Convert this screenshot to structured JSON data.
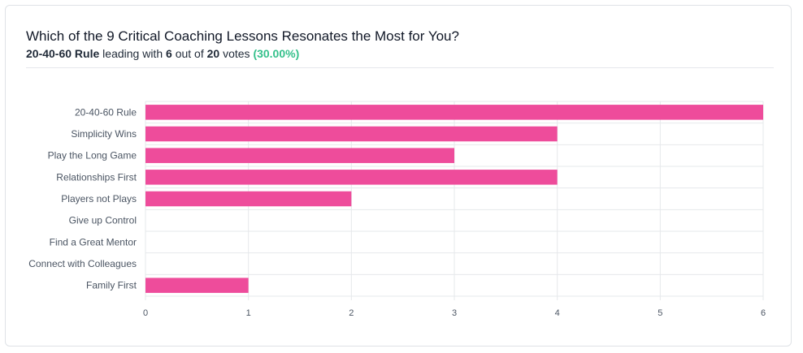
{
  "header": {
    "title": "Which of the 9 Critical Coaching Lessons Resonates the Most for You?",
    "leader": "20-40-60 Rule",
    "leading_with": "leading with",
    "top_votes": "6",
    "out_of": "out of",
    "total_votes": "20",
    "votes_word": "votes",
    "percent": "(30.00%)"
  },
  "colors": {
    "bar": "#ee4c9b",
    "percent": "#34c08b",
    "grid": "#e6e8eb"
  },
  "chart_data": {
    "type": "bar",
    "orientation": "horizontal",
    "title": "",
    "xlabel": "",
    "ylabel": "",
    "categories": [
      "20-40-60 Rule",
      "Simplicity Wins",
      "Play the Long Game",
      "Relationships First",
      "Players not Plays",
      "Give up Control",
      "Find a Great Mentor",
      "Connect with Colleagues",
      "Family First"
    ],
    "values": [
      6,
      4,
      3,
      4,
      2,
      0,
      0,
      0,
      1
    ],
    "xlim": [
      0,
      6
    ],
    "xticks": [
      0,
      1,
      2,
      3,
      4,
      5,
      6
    ],
    "grid": true,
    "legend": "none"
  }
}
